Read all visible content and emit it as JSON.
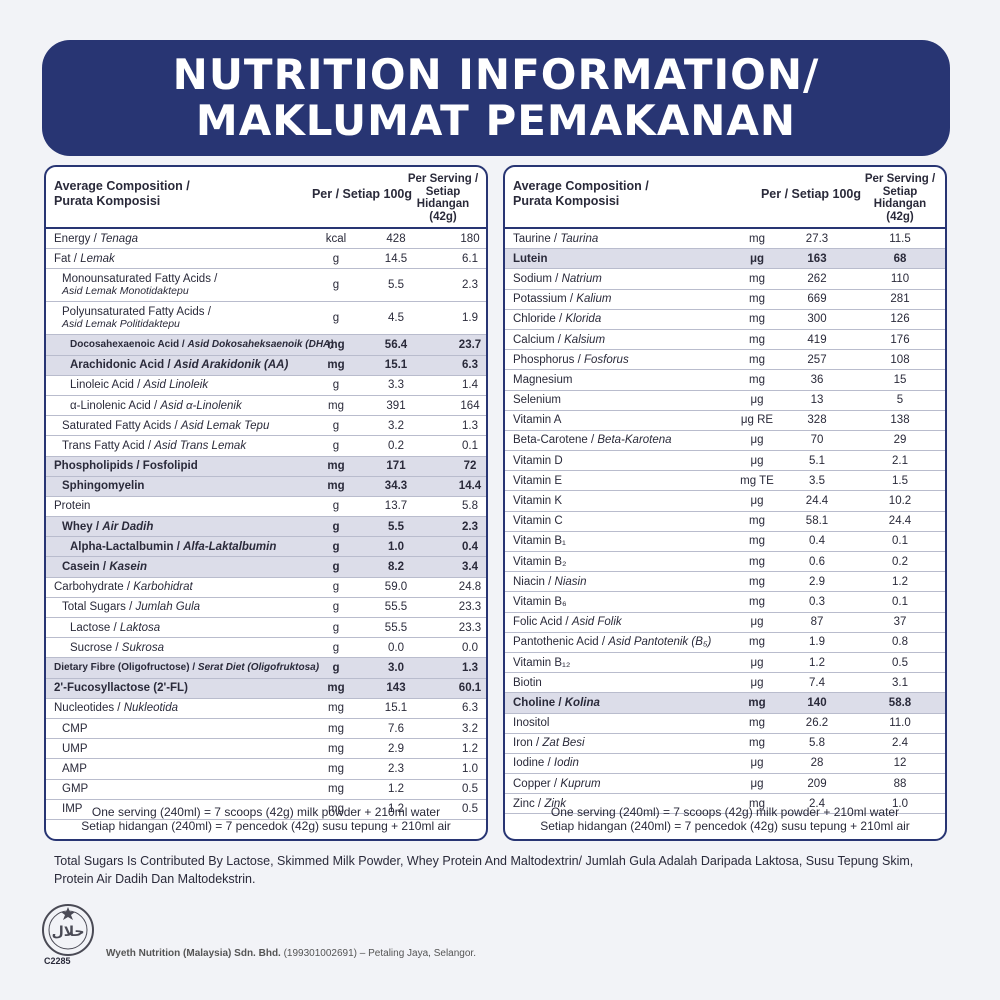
{
  "banner": {
    "line1": "NUTRITION INFORMATION/",
    "line2": "MAKLUMAT PEMAKANAN"
  },
  "header": {
    "comp1": "Average Composition /",
    "comp2": "Purata Komposisi",
    "per100": "Per / Setiap 100g",
    "serv1": "Per Serving /",
    "serv2": "Setiap Hidangan",
    "serv3": "(42g)"
  },
  "left_rows": [
    {
      "name": "Energy / ",
      "name_it": "Tenaga",
      "unit": "kcal",
      "v1": "428",
      "v2": "180"
    },
    {
      "name": "Fat / ",
      "name_it": "Lemak",
      "unit": "g",
      "v1": "14.5",
      "v2": "6.1"
    },
    {
      "name": "Monounsaturated Fatty Acids /",
      "name_it": "Asid Lemak Monotidaktepu",
      "two_line": true,
      "indent": 1,
      "unit": "g",
      "v1": "5.5",
      "v2": "2.3"
    },
    {
      "name": "Polyunsaturated Fatty Acids /",
      "name_it": "Asid Lemak Politidaktepu",
      "two_line": true,
      "indent": 1,
      "unit": "g",
      "v1": "4.5",
      "v2": "1.9"
    },
    {
      "name": "Docosahexaenoic Acid / ",
      "name_it": "Asid Dokosaheksaenoik (DHA)",
      "indent": 2,
      "hl": true,
      "small": true,
      "unit": "mg",
      "v1": "56.4",
      "v2": "23.7"
    },
    {
      "name": "Arachidonic Acid / ",
      "name_it": "Asid Arakidonik (AA)",
      "indent": 2,
      "hl": true,
      "unit": "mg",
      "v1": "15.1",
      "v2": "6.3"
    },
    {
      "name": "Linoleic Acid / ",
      "name_it": "Asid Linoleik",
      "indent": 2,
      "unit": "g",
      "v1": "3.3",
      "v2": "1.4"
    },
    {
      "name": "α-Linolenic Acid / ",
      "name_it": "Asid α-Linolenik",
      "indent": 2,
      "unit": "mg",
      "v1": "391",
      "v2": "164"
    },
    {
      "name": "Saturated Fatty Acids / ",
      "name_it": "Asid Lemak Tepu",
      "indent": 1,
      "unit": "g",
      "v1": "3.2",
      "v2": "1.3"
    },
    {
      "name": "Trans Fatty Acid / ",
      "name_it": "Asid Trans Lemak",
      "indent": 1,
      "unit": "g",
      "v1": "0.2",
      "v2": "0.1"
    },
    {
      "name": "Phospholipids / Fosfolipid",
      "name_it": "",
      "hl": true,
      "unit": "mg",
      "v1": "171",
      "v2": "72"
    },
    {
      "name": "Sphingomyelin",
      "name_it": "",
      "indent": 1,
      "hl": true,
      "unit": "mg",
      "v1": "34.3",
      "v2": "14.4"
    },
    {
      "name": "Protein",
      "name_it": "",
      "unit": "g",
      "v1": "13.7",
      "v2": "5.8"
    },
    {
      "name": "Whey / ",
      "name_it": "Air Dadih",
      "indent": 1,
      "hl": true,
      "unit": "g",
      "v1": "5.5",
      "v2": "2.3"
    },
    {
      "name": "Alpha-Lactalbumin / ",
      "name_it": "Alfa-Laktalbumin",
      "indent": 2,
      "hl": true,
      "unit": "g",
      "v1": "1.0",
      "v2": "0.4"
    },
    {
      "name": "Casein / ",
      "name_it": "Kasein",
      "indent": 1,
      "hl": true,
      "unit": "g",
      "v1": "8.2",
      "v2": "3.4"
    },
    {
      "name": "Carbohydrate / ",
      "name_it": "Karbohidrat",
      "unit": "g",
      "v1": "59.0",
      "v2": "24.8"
    },
    {
      "name": "Total Sugars / ",
      "name_it": "Jumlah Gula",
      "indent": 1,
      "unit": "g",
      "v1": "55.5",
      "v2": "23.3"
    },
    {
      "name": "Lactose / ",
      "name_it": "Laktosa",
      "indent": 2,
      "unit": "g",
      "v1": "55.5",
      "v2": "23.3"
    },
    {
      "name": "Sucrose / ",
      "name_it": "Sukrosa",
      "indent": 2,
      "unit": "g",
      "v1": "0.0",
      "v2": "0.0"
    },
    {
      "name": "Dietary Fibre (Oligofructose) / ",
      "name_it": "Serat Diet (Oligofruktosa)",
      "hl": true,
      "small": true,
      "unit": "g",
      "v1": "3.0",
      "v2": "1.3"
    },
    {
      "name": "2'-Fucosyllactose (2'-FL)",
      "name_it": "",
      "hl": true,
      "unit": "mg",
      "v1": "143",
      "v2": "60.1"
    },
    {
      "name": "Nucleotides / ",
      "name_it": "Nukleotida",
      "unit": "mg",
      "v1": "15.1",
      "v2": "6.3"
    },
    {
      "name": "CMP",
      "name_it": "",
      "indent": 1,
      "unit": "mg",
      "v1": "7.6",
      "v2": "3.2"
    },
    {
      "name": "UMP",
      "name_it": "",
      "indent": 1,
      "unit": "mg",
      "v1": "2.9",
      "v2": "1.2"
    },
    {
      "name": "AMP",
      "name_it": "",
      "indent": 1,
      "unit": "mg",
      "v1": "2.3",
      "v2": "1.0"
    },
    {
      "name": "GMP",
      "name_it": "",
      "indent": 1,
      "unit": "mg",
      "v1": "1.2",
      "v2": "0.5"
    },
    {
      "name": "IMP",
      "name_it": "",
      "indent": 1,
      "unit": "mg",
      "v1": "1.2",
      "v2": "0.5"
    }
  ],
  "right_rows": [
    {
      "name": "Taurine / ",
      "name_it": "Taurina",
      "unit": "mg",
      "v1": "27.3",
      "v2": "11.5"
    },
    {
      "name": "Lutein",
      "name_it": "",
      "hl": true,
      "unit": "μg",
      "v1": "163",
      "v2": "68"
    },
    {
      "name": "Sodium / ",
      "name_it": "Natrium",
      "unit": "mg",
      "v1": "262",
      "v2": "110"
    },
    {
      "name": "Potassium / ",
      "name_it": "Kalium",
      "unit": "mg",
      "v1": "669",
      "v2": "281"
    },
    {
      "name": "Chloride / ",
      "name_it": "Klorida",
      "unit": "mg",
      "v1": "300",
      "v2": "126"
    },
    {
      "name": "Calcium / ",
      "name_it": "Kalsium",
      "unit": "mg",
      "v1": "419",
      "v2": "176"
    },
    {
      "name": "Phosphorus / ",
      "name_it": "Fosforus",
      "unit": "mg",
      "v1": "257",
      "v2": "108"
    },
    {
      "name": "Magnesium",
      "name_it": "",
      "unit": "mg",
      "v1": "36",
      "v2": "15"
    },
    {
      "name": "Selenium",
      "name_it": "",
      "unit": "μg",
      "v1": "13",
      "v2": "5"
    },
    {
      "name": "Vitamin A",
      "name_it": "",
      "unit": "μg RE",
      "v1": "328",
      "v2": "138"
    },
    {
      "name": "Beta-Carotene / ",
      "name_it": "Beta-Karotena",
      "unit": "μg",
      "v1": "70",
      "v2": "29"
    },
    {
      "name": "Vitamin D",
      "name_it": "",
      "unit": "μg",
      "v1": "5.1",
      "v2": "2.1"
    },
    {
      "name": "Vitamin E",
      "name_it": "",
      "unit": "mg TE",
      "v1": "3.5",
      "v2": "1.5"
    },
    {
      "name": "Vitamin K",
      "name_it": "",
      "unit": "μg",
      "v1": "24.4",
      "v2": "10.2"
    },
    {
      "name": "Vitamin C",
      "name_it": "",
      "unit": "mg",
      "v1": "58.1",
      "v2": "24.4"
    },
    {
      "name": "Vitamin B₁",
      "name_it": "",
      "unit": "mg",
      "v1": "0.4",
      "v2": "0.1"
    },
    {
      "name": "Vitamin B₂",
      "name_it": "",
      "unit": "mg",
      "v1": "0.6",
      "v2": "0.2"
    },
    {
      "name": "Niacin / ",
      "name_it": "Niasin",
      "unit": "mg",
      "v1": "2.9",
      "v2": "1.2"
    },
    {
      "name": "Vitamin B₆",
      "name_it": "",
      "unit": "mg",
      "v1": "0.3",
      "v2": "0.1"
    },
    {
      "name": "Folic Acid / ",
      "name_it": "Asid Folik",
      "unit": "μg",
      "v1": "87",
      "v2": "37"
    },
    {
      "name": "Pantothenic Acid / ",
      "name_it": "Asid Pantotenik (B₅)",
      "unit": "mg",
      "v1": "1.9",
      "v2": "0.8"
    },
    {
      "name": "Vitamin B₁₂",
      "name_it": "",
      "unit": "μg",
      "v1": "1.2",
      "v2": "0.5"
    },
    {
      "name": "Biotin",
      "name_it": "",
      "unit": "μg",
      "v1": "7.4",
      "v2": "3.1"
    },
    {
      "name": "Choline / ",
      "name_it": "Kolina",
      "hl": true,
      "unit": "mg",
      "v1": "140",
      "v2": "58.8"
    },
    {
      "name": "Inositol",
      "name_it": "",
      "unit": "mg",
      "v1": "26.2",
      "v2": "11.0"
    },
    {
      "name": "Iron / ",
      "name_it": "Zat Besi",
      "unit": "mg",
      "v1": "5.8",
      "v2": "2.4"
    },
    {
      "name": "Iodine / ",
      "name_it": "Iodin",
      "unit": "μg",
      "v1": "28",
      "v2": "12"
    },
    {
      "name": "Copper / ",
      "name_it": "Kuprum",
      "unit": "μg",
      "v1": "209",
      "v2": "88"
    },
    {
      "name": "Zinc / ",
      "name_it": "Zink",
      "unit": "mg",
      "v1": "2.4",
      "v2": "1.0"
    }
  ],
  "footnote": {
    "line1": "One serving (240ml) = 7 scoops (42g) milk powder + 210ml water",
    "line2": "Setiap hidangan (240ml) = 7 pencedok (42g) susu tepung + 210ml air"
  },
  "bottom_text": "Total Sugars Is Contributed By Lactose, Skimmed Milk Powder, Whey Protein And Maltodextrin/ Jumlah Gula Adalah Daripada Laktosa, Susu Tepung Skim, Protein Air Dadih Dan Maltodekstrin.",
  "halal": {
    "icon": "halal-logo-icon",
    "code": "C2285",
    "logo_text": "حلال"
  },
  "company": {
    "name": "Wyeth Nutrition (Malaysia) Sdn. Bhd.",
    "rest": " (199301002691) – Petaling Jaya, Selangor."
  },
  "colors": {
    "navy": "#283573",
    "highlight": "#dcdde9",
    "text": "#2a2a3a"
  }
}
